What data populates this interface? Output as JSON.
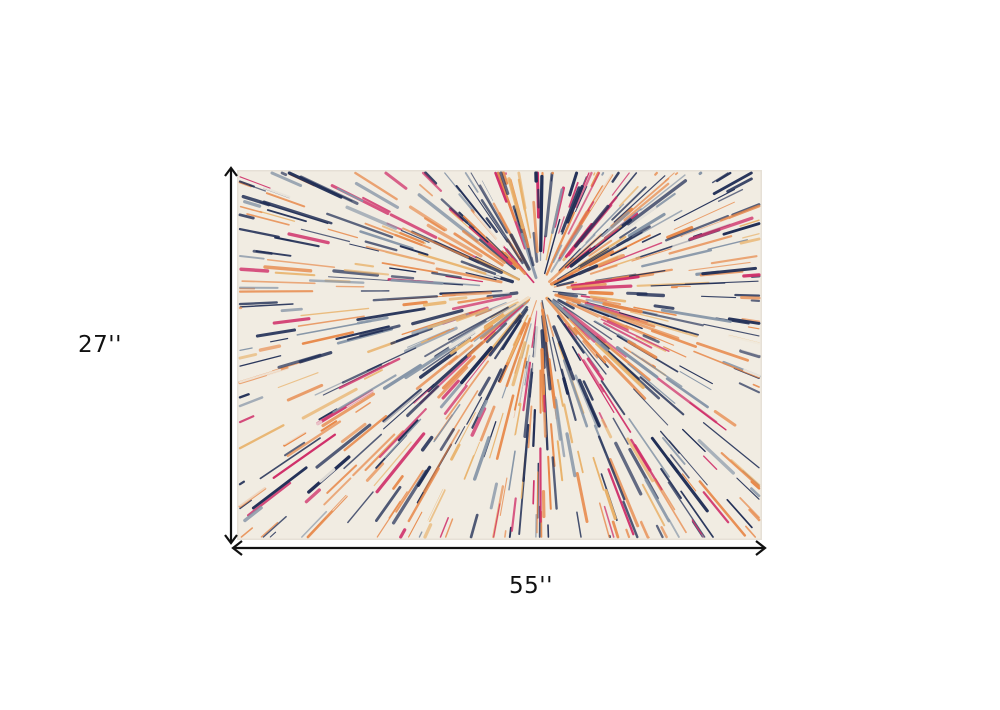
{
  "product": {
    "height_label": "27''",
    "width_label": "55''",
    "pattern": "starburst",
    "colors": {
      "navy": "#1f2d55",
      "orange": "#e8894a",
      "pink": "#d0306a",
      "cream": "#f1ece2",
      "slate": "#8796a8",
      "gold": "#e9b26a"
    }
  }
}
